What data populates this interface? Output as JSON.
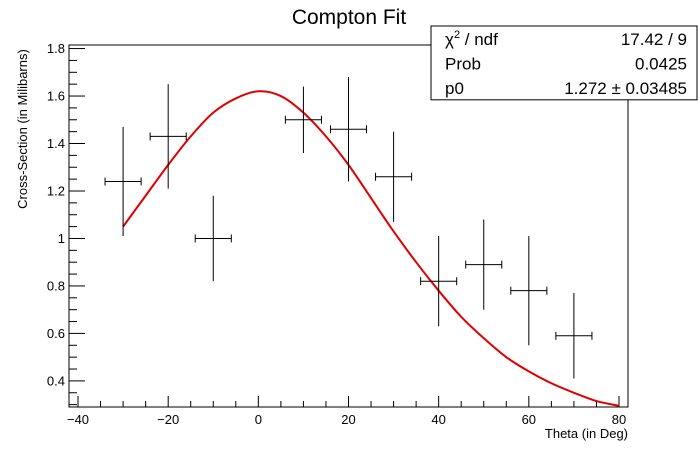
{
  "chart_data": {
    "type": "scatter",
    "title": "Compton Fit",
    "xlabel": "Theta (in Deg)",
    "ylabel": "Cross-Section (in Milibarns)",
    "xlim": [
      -42,
      82
    ],
    "ylim": [
      0.29,
      1.815
    ],
    "x_ticks": [
      -40,
      -20,
      0,
      20,
      40,
      60,
      80
    ],
    "x_tick_labels": [
      "−40",
      "−20",
      "0",
      "20",
      "40",
      "60",
      "80"
    ],
    "y_ticks": [
      0.4,
      0.6,
      0.8,
      1.0,
      1.2,
      1.4,
      1.6,
      1.8
    ],
    "y_tick_labels": [
      "0.4",
      "0.6",
      "0.8",
      "1",
      "1.2",
      "1.4",
      "1.6",
      "1.8"
    ],
    "grid": false,
    "series": [
      {
        "kind": "data-points-with-errors",
        "color": "#000000",
        "points": [
          {
            "x": -30,
            "y": 1.24,
            "xerr": 2,
            "yerr": 0.23
          },
          {
            "x": -20,
            "y": 1.43,
            "xerr": 2,
            "yerr": 0.22
          },
          {
            "x": -10,
            "y": 1.0,
            "xerr": 2,
            "yerr": 0.18
          },
          {
            "x": 10,
            "y": 1.5,
            "xerr": 2,
            "yerr": 0.14
          },
          {
            "x": 20,
            "y": 1.46,
            "xerr": 2,
            "yerr": 0.22
          },
          {
            "x": 30,
            "y": 1.26,
            "xerr": 2,
            "yerr": 0.19
          },
          {
            "x": 40,
            "y": 0.82,
            "xerr": 2,
            "yerr": 0.19
          },
          {
            "x": 50,
            "y": 0.89,
            "xerr": 2,
            "yerr": 0.19
          },
          {
            "x": 60,
            "y": 0.78,
            "xerr": 2,
            "yerr": 0.23
          },
          {
            "x": 70,
            "y": 0.59,
            "xerr": 2,
            "yerr": 0.18
          }
        ]
      },
      {
        "kind": "fit-line",
        "color": "#e00000",
        "x": [
          -30,
          -25,
          -20,
          -15,
          -10,
          -5,
          0,
          5,
          10,
          15,
          20,
          25,
          30,
          35,
          40,
          45,
          50,
          55,
          60,
          65,
          70,
          75,
          80
        ],
        "y": [
          1.05,
          1.18,
          1.31,
          1.43,
          1.53,
          1.59,
          1.62,
          1.6,
          1.53,
          1.43,
          1.31,
          1.17,
          1.03,
          0.9,
          0.78,
          0.67,
          0.58,
          0.5,
          0.44,
          0.39,
          0.35,
          0.315,
          0.295
        ]
      }
    ],
    "stats_box": {
      "position": "top-right",
      "rows": [
        {
          "label_base": "χ",
          "label_sup": "2",
          "label_rest": " / ndf",
          "value": "17.42 / 9"
        },
        {
          "label_base": "Prob",
          "label_sup": "",
          "label_rest": "",
          "value": "0.0425"
        },
        {
          "label_base": "p0",
          "label_sup": "",
          "label_rest": "",
          "value": "1.272 ± 0.03485"
        }
      ]
    }
  }
}
